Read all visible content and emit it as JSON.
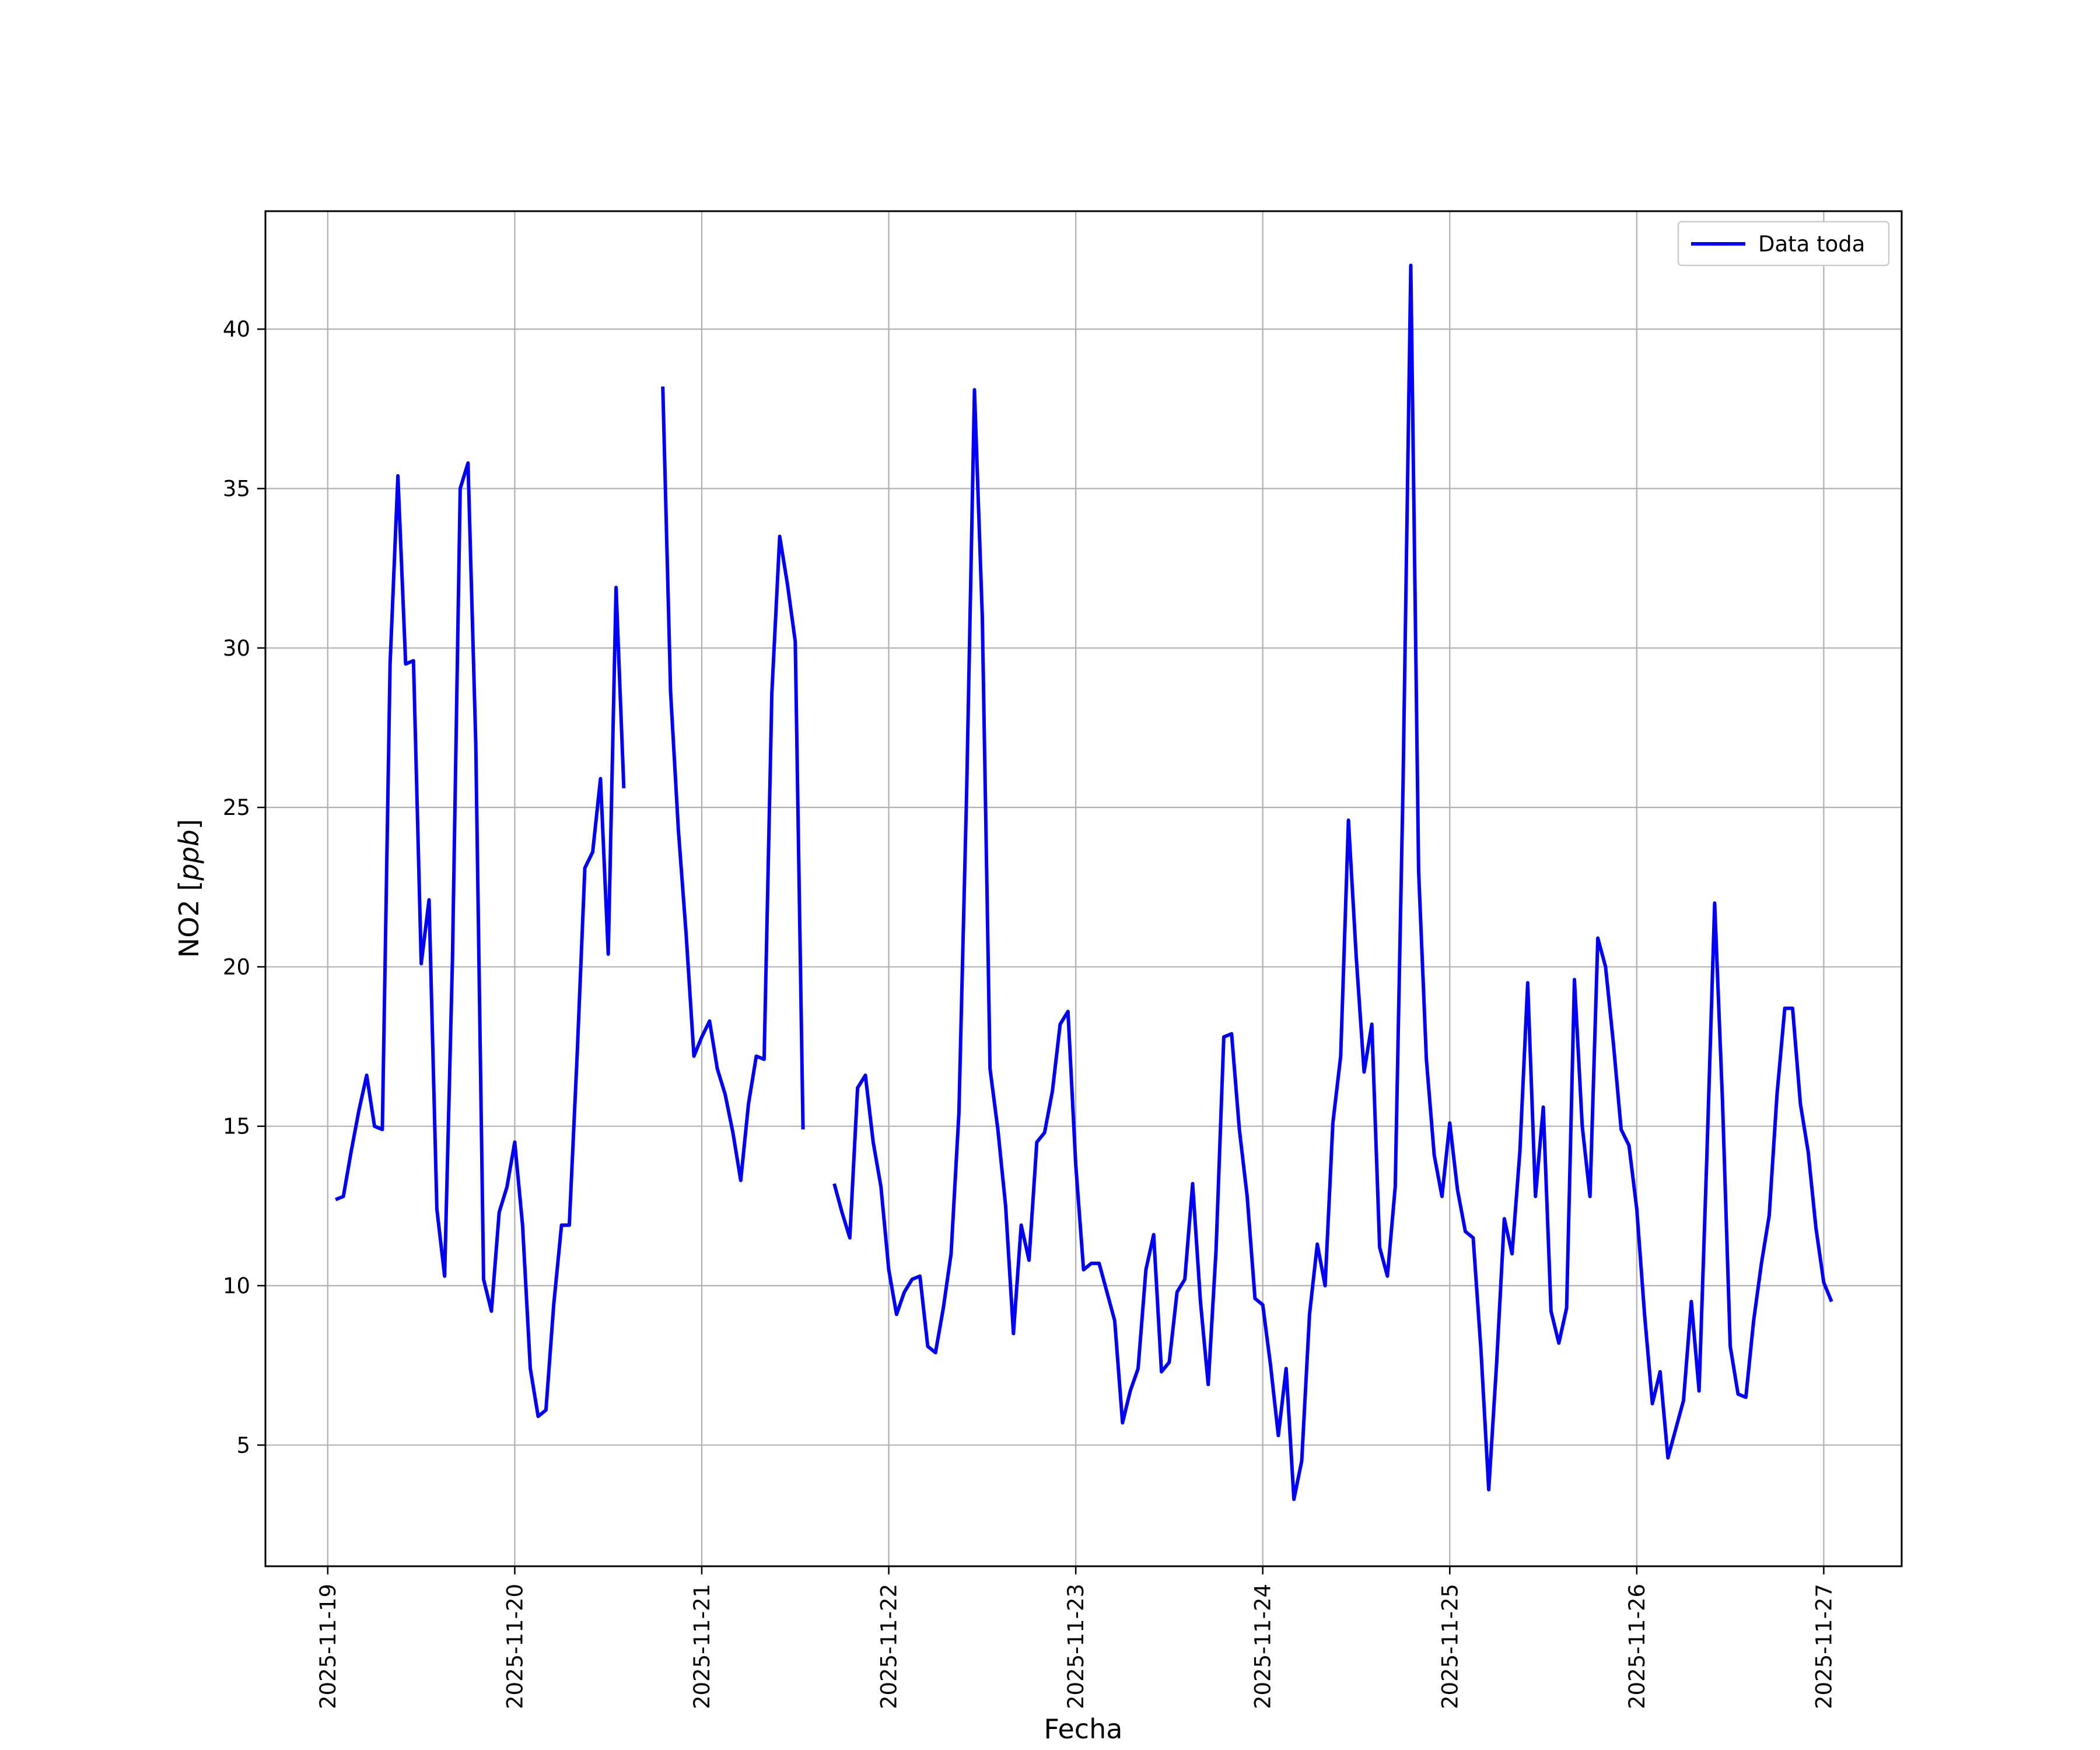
{
  "chart_data": {
    "type": "line",
    "xlabel": "Fecha",
    "ylabel": "NO2 [ppb]",
    "xlim": [
      "2025-11-18 16:00",
      "2025-11-27 10:00"
    ],
    "ylim": [
      1.2,
      43.7
    ],
    "x_ticks": [
      "2025-11-19",
      "2025-11-20",
      "2025-11-21",
      "2025-11-22",
      "2025-11-23",
      "2025-11-24",
      "2025-11-25",
      "2025-11-26",
      "2025-11-27"
    ],
    "y_ticks": [
      5,
      10,
      15,
      20,
      25,
      30,
      35,
      40
    ],
    "grid": true,
    "legend": {
      "position": "top-right",
      "entries": [
        "Data toda"
      ]
    },
    "colors": {
      "line": "#0000ff",
      "grid": "#b0b0b0"
    },
    "series": [
      {
        "name": "Data toda",
        "start": "2025-11-19 01:00",
        "step_hours": 1,
        "values": [
          12.7,
          12.8,
          14.2,
          15.5,
          16.6,
          15.0,
          14.9,
          29.5,
          35.4,
          29.5,
          29.6,
          20.1,
          22.1,
          12.4,
          10.3,
          20.2,
          35.0,
          35.8,
          27.0,
          10.2,
          9.2,
          12.3,
          13.1,
          14.5,
          11.9,
          7.4,
          5.9,
          6.1,
          9.4,
          11.9,
          11.9,
          17.2,
          23.1,
          23.6,
          25.9,
          20.4,
          31.9,
          25.6,
          null,
          null,
          null,
          null,
          38.2,
          28.6,
          24.3,
          21.0,
          17.2,
          17.8,
          18.3,
          16.8,
          16.0,
          14.8,
          13.3,
          15.7,
          17.2,
          17.1,
          28.6,
          33.5,
          32.0,
          30.2,
          14.9,
          null,
          null,
          null,
          13.2,
          12.3,
          11.5,
          16.2,
          16.6,
          14.5,
          13.1,
          10.5,
          9.1,
          9.8,
          10.2,
          10.3,
          8.1,
          7.9,
          9.3,
          11.0,
          15.4,
          25.5,
          38.1,
          31.0,
          16.8,
          14.9,
          12.5,
          8.5,
          11.9,
          10.8,
          14.5,
          14.8,
          16.1,
          18.2,
          18.6,
          13.8,
          10.5,
          10.7,
          10.7,
          9.8,
          8.9,
          5.7,
          6.7,
          7.4,
          10.5,
          11.6,
          7.3,
          7.6,
          9.8,
          10.2,
          13.2,
          9.5,
          6.9,
          11.1,
          17.8,
          17.9,
          14.9,
          12.8,
          9.6,
          9.4,
          7.5,
          5.3,
          7.4,
          3.3,
          4.5,
          9.1,
          11.3,
          10.0,
          15.1,
          17.2,
          24.6,
          20.3,
          16.7,
          18.2,
          11.2,
          10.3,
          13.1,
          25.6,
          42.0,
          23.0,
          17.1,
          14.1,
          12.8,
          15.1,
          13.0,
          11.7,
          11.5,
          8.0,
          3.6,
          7.5,
          12.1,
          11.0,
          14.2,
          19.5,
          12.8,
          15.6,
          9.2,
          8.2,
          9.3,
          19.6,
          15.0,
          12.8,
          20.9,
          20.0,
          17.6,
          14.9,
          14.4,
          12.4,
          9.1,
          6.3,
          7.3,
          4.6,
          5.5,
          6.4,
          9.5,
          6.7,
          14.1,
          22.0,
          15.8,
          8.1,
          6.6,
          6.5,
          8.9,
          10.7,
          12.2,
          16.0,
          18.7,
          18.7,
          15.7,
          14.2,
          11.8,
          10.1,
          9.5
        ]
      }
    ]
  }
}
